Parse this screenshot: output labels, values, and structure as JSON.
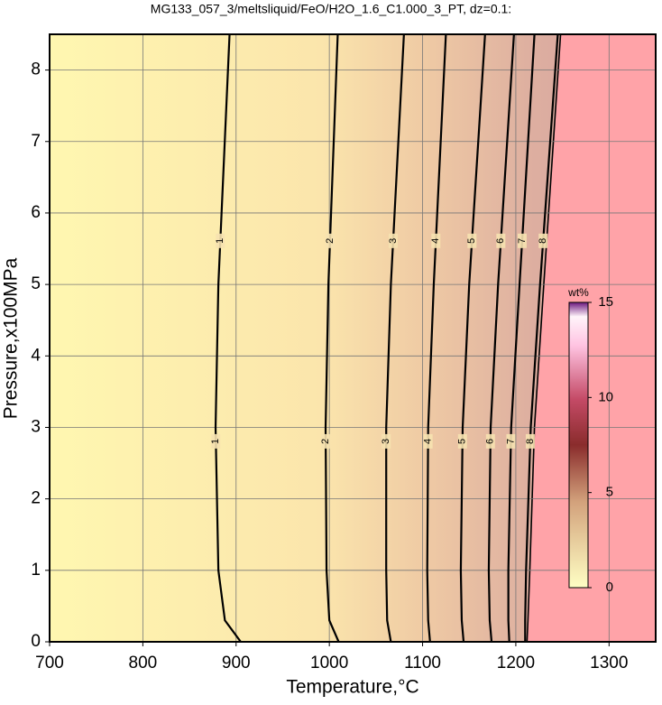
{
  "chart_data": {
    "type": "contour",
    "title": "MG133_057_3/meltsliquid/FeO/H2O_1.6_C1.000_3_PT, dz=0.1:",
    "x_label": "Temperature,°C",
    "y_label": "Pressure,x100MPa",
    "xlim": [
      700,
      1350
    ],
    "ylim": [
      0,
      8.5
    ],
    "xticks": [
      700,
      800,
      900,
      1000,
      1100,
      1200,
      1300
    ],
    "yticks": [
      0,
      1,
      2,
      3,
      4,
      5,
      6,
      7,
      8
    ],
    "grid": true,
    "contours": [
      {
        "level": 1,
        "x": [
          905,
          888,
          881,
          878,
          881,
          893
        ],
        "y": [
          0,
          0.3,
          1,
          3,
          5,
          8.5
        ]
      },
      {
        "level": 2,
        "x": [
          1010,
          1000,
          997,
          996,
          999,
          1009
        ],
        "y": [
          0,
          0.3,
          1,
          3,
          5,
          8.5
        ]
      },
      {
        "level": 3,
        "x": [
          1066,
          1062,
          1061,
          1061,
          1066,
          1080
        ],
        "y": [
          0,
          0.3,
          1,
          3,
          5,
          8.5
        ]
      },
      {
        "level": 4,
        "x": [
          1108,
          1106,
          1105,
          1106,
          1112,
          1125
        ],
        "y": [
          0,
          0.3,
          1,
          3,
          5,
          8.5
        ]
      },
      {
        "level": 5,
        "x": [
          1144,
          1142,
          1141,
          1143,
          1150,
          1167
        ],
        "y": [
          0,
          0.3,
          1,
          3,
          5,
          8.5
        ]
      },
      {
        "level": 6,
        "x": [
          1174,
          1172,
          1171,
          1173,
          1181,
          1198
        ],
        "y": [
          0,
          0.3,
          1,
          3,
          5,
          8.5
        ]
      },
      {
        "level": 7,
        "x": [
          1193,
          1192,
          1192,
          1195,
          1204,
          1220
        ],
        "y": [
          0,
          0.3,
          1,
          3,
          5,
          8.5
        ]
      },
      {
        "level": 8,
        "x": [
          1210,
          1210,
          1211,
          1216,
          1226,
          1245
        ],
        "y": [
          0,
          0.3,
          1,
          3,
          5,
          8.5
        ]
      }
    ],
    "boundary": {
      "x": [
        1212,
        1213,
        1215,
        1220,
        1230,
        1248
      ],
      "y": [
        0,
        0.3,
        1,
        3,
        5,
        8.5
      ],
      "color": "#ffa3a8"
    },
    "colorbar": {
      "label": "wt%",
      "lim": [
        0,
        15
      ],
      "ticks": [
        0,
        5,
        10,
        15
      ]
    }
  }
}
